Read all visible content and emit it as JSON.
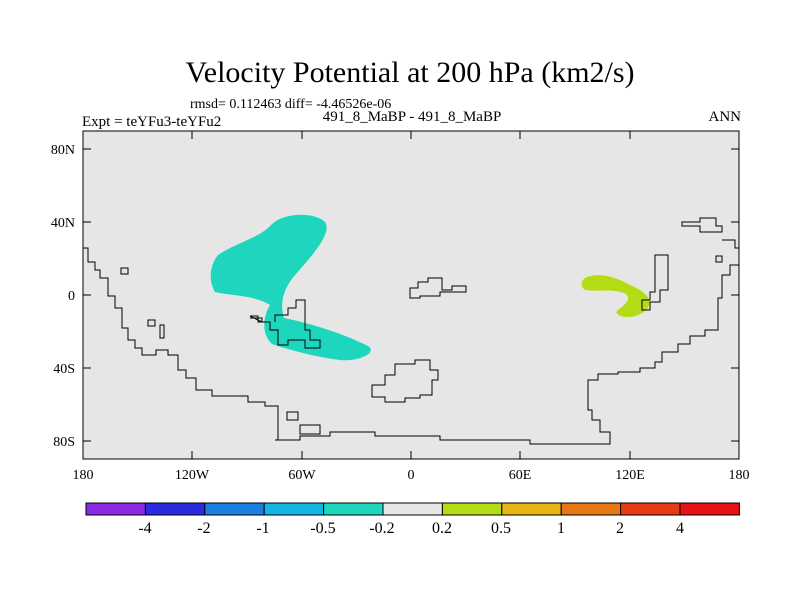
{
  "chart_data": {
    "type": "heatmap",
    "title": "Velocity Potential at 200 hPa (km2/s)",
    "stats_line": "rmsd= 0.112463 diff= -4.46526e-06",
    "left_label": "Expt = teYFu3-teYFu2",
    "center_label": "491_8_MaBP - 491_8_MaBP",
    "right_label": "ANN",
    "x_ticks": [
      "180",
      "120W",
      "60W",
      "0",
      "60E",
      "120E",
      "180"
    ],
    "y_ticks": [
      "80N",
      "40N",
      "0",
      "40S",
      "80S"
    ],
    "xlim": [
      -180,
      180
    ],
    "ylim": [
      -90,
      90
    ],
    "levels": [
      "-4",
      "-2",
      "-1",
      "-0.5",
      "-0.2",
      "0.2",
      "0.5",
      "1",
      "2",
      "4"
    ],
    "colorbar_colors": [
      "#8a2be2",
      "#2a2ae0",
      "#1a7fe0",
      "#14b4e6",
      "#1ed6be",
      "#e6e6e6",
      "#b4dc14",
      "#e6b414",
      "#e67814",
      "#e63c14",
      "#e61414"
    ],
    "regions": [
      {
        "name": "negative-anomaly-region",
        "range": "-0.5 to -0.2",
        "color": "#1ed6be",
        "lon_range": [
          -110,
          -20
        ],
        "lat_range": [
          -38,
          44
        ]
      },
      {
        "name": "positive-anomaly-region",
        "range": "0.2 to 0.5",
        "color": "#b4dc14",
        "lon_range": [
          95,
          132
        ],
        "lat_range": [
          -14,
          10
        ]
      }
    ]
  }
}
